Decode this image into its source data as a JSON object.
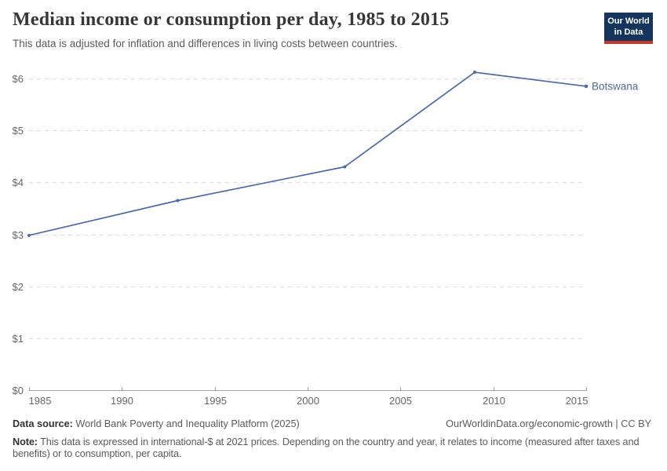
{
  "header": {
    "title": "Median income or consumption per day, 1985 to 2015",
    "subtitle": "This data is adjusted for inflation and differences in living costs between countries.",
    "logo": {
      "line1": "Our World",
      "line2": "in Data",
      "bg_color": "#14355C",
      "bar_color": "#C4392B",
      "text_color": "#FFFFFF"
    }
  },
  "chart_data": {
    "type": "line",
    "title": "Median income or consumption per day, 1985 to 2015",
    "subtitle": "This data is adjusted for inflation and differences in living costs between countries.",
    "entity": "Botswana",
    "x": [
      1985,
      1993,
      2002,
      2009,
      2015
    ],
    "series": [
      {
        "name": "Botswana",
        "color": "#4a6baa",
        "values": [
          2.98,
          3.65,
          4.3,
          6.12,
          5.85
        ]
      }
    ],
    "xlabel": "",
    "ylabel": "",
    "xlim": [
      1985,
      2015
    ],
    "ylim": [
      0,
      6
    ],
    "x_ticks": [
      1985,
      1990,
      1995,
      2000,
      2005,
      2010,
      2015
    ],
    "y_ticks": [
      {
        "value": 0,
        "label": "$0"
      },
      {
        "value": 1,
        "label": "$1"
      },
      {
        "value": 2,
        "label": "$2"
      },
      {
        "value": 3,
        "label": "$3"
      },
      {
        "value": 4,
        "label": "$4"
      },
      {
        "value": 5,
        "label": "$5"
      },
      {
        "value": 6,
        "label": "$6"
      }
    ],
    "grid": "horizontal-dashed",
    "legend": "line-end-label",
    "colors": {
      "grid": "#dcdcdc",
      "axis": "#a3a3a3",
      "tick_labels": "#666666"
    }
  },
  "footer": {
    "source_label": "Data source:",
    "source_text": "World Bank Poverty and Inequality Platform (2025)",
    "link": "OurWorldinData.org/economic-growth | CC BY",
    "note_label": "Note:",
    "note_text": "This data is expressed in international-$ at 2021 prices. Depending on the country and year, it relates to income (measured after taxes and benefits) or to consumption, per capita."
  }
}
